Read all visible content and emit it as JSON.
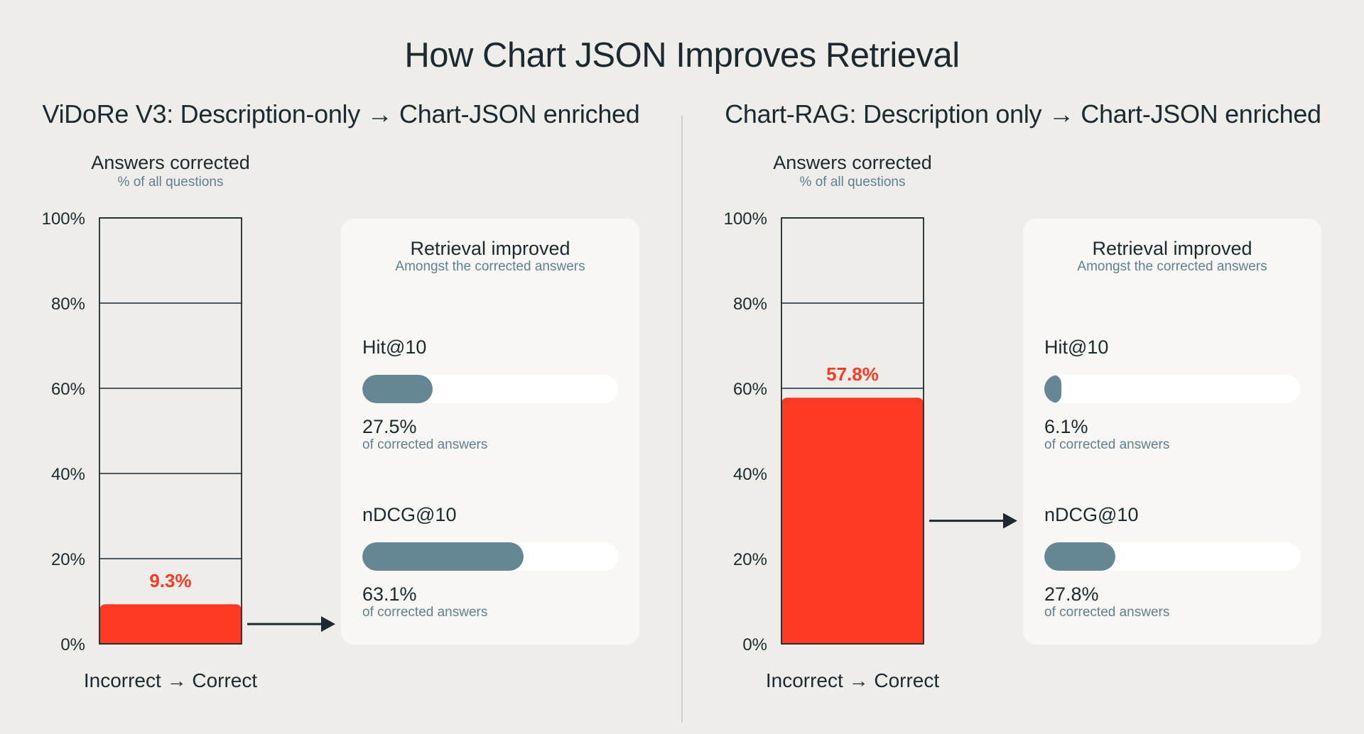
{
  "title": "How Chart JSON Improves Retrieval",
  "colors": {
    "bar": "#ff3a24",
    "metric_bar": "#658695",
    "card_bg": "#f8f7f4",
    "page_bg": "#eeedea"
  },
  "chart_data": [
    {
      "type": "bar",
      "title": "ViDoRe V3: Description-only → Chart-JSON enriched",
      "ylabel": "Answers corrected",
      "ylabel_sub": "% of all questions",
      "xlabel": "Incorrect → Correct",
      "ylim": [
        0,
        100
      ],
      "yticks": [
        "0%",
        "20%",
        "40%",
        "60%",
        "80%",
        "100%"
      ],
      "categories": [
        "Incorrect → Correct"
      ],
      "values": [
        9.3
      ],
      "value_label": "9.3%",
      "card": {
        "title": "Retrieval improved",
        "subtitle": "Amongst the corrected answers",
        "metrics": [
          {
            "name": "Hit@10",
            "value": 27.5,
            "label": "27.5%",
            "sub": "of corrected answers"
          },
          {
            "name": "nDCG@10",
            "value": 63.1,
            "label": "63.1%",
            "sub": "of corrected answers"
          }
        ]
      }
    },
    {
      "type": "bar",
      "title": "Chart-RAG: Description only → Chart-JSON enriched",
      "ylabel": "Answers corrected",
      "ylabel_sub": "% of all questions",
      "xlabel": "Incorrect → Correct",
      "ylim": [
        0,
        100
      ],
      "yticks": [
        "0%",
        "20%",
        "40%",
        "60%",
        "80%",
        "100%"
      ],
      "categories": [
        "Incorrect → Correct"
      ],
      "values": [
        57.8
      ],
      "value_label": "57.8%",
      "card": {
        "title": "Retrieval improved",
        "subtitle": "Amongst the corrected answers",
        "metrics": [
          {
            "name": "Hit@10",
            "value": 6.1,
            "label": "6.1%",
            "sub": "of corrected answers"
          },
          {
            "name": "nDCG@10",
            "value": 27.8,
            "label": "27.8%",
            "sub": "of corrected answers"
          }
        ]
      }
    }
  ]
}
